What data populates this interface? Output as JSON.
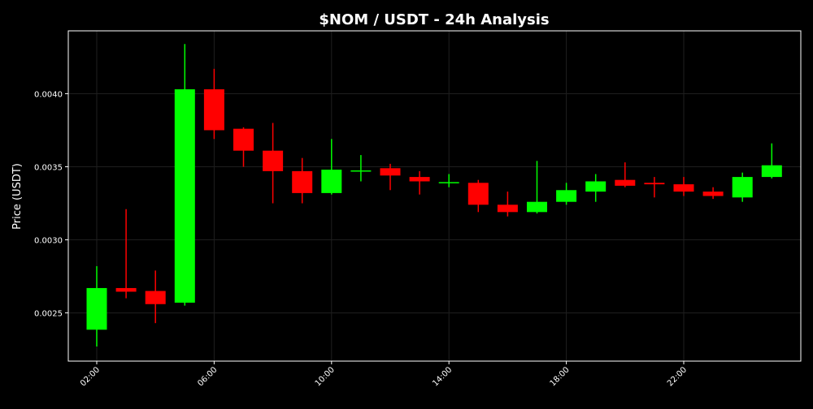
{
  "chart_data": {
    "type": "candlestick",
    "title": "$NOM / USDT - 24h Analysis",
    "xlabel": "",
    "ylabel": "Price (USDT)",
    "ylim": [
      0.00217,
      0.00443
    ],
    "grid": true,
    "x_ticks": [
      "02:00",
      "06:00",
      "10:00",
      "14:00",
      "18:00",
      "22:00"
    ],
    "y_ticks": [
      "0.0025",
      "0.0030",
      "0.0035",
      "0.0040"
    ],
    "colors": {
      "up": "#00ff00",
      "down": "#ff0000",
      "background": "#000000",
      "text": "#ffffff",
      "grid": "#1f1f1f"
    },
    "candles": [
      {
        "time": "02:00",
        "open": 0.002385,
        "high": 0.00282,
        "low": 0.00227,
        "close": 0.00267
      },
      {
        "time": "03:00",
        "open": 0.00267,
        "high": 0.00321,
        "low": 0.0026,
        "close": 0.002645
      },
      {
        "time": "04:00",
        "open": 0.00265,
        "high": 0.00279,
        "low": 0.00243,
        "close": 0.00256
      },
      {
        "time": "05:00",
        "open": 0.00257,
        "high": 0.00434,
        "low": 0.00255,
        "close": 0.00403
      },
      {
        "time": "06:00",
        "open": 0.00403,
        "high": 0.00417,
        "low": 0.00369,
        "close": 0.00375
      },
      {
        "time": "07:00",
        "open": 0.00376,
        "high": 0.00377,
        "low": 0.0035,
        "close": 0.00361
      },
      {
        "time": "08:00",
        "open": 0.00361,
        "high": 0.0038,
        "low": 0.00325,
        "close": 0.00347
      },
      {
        "time": "09:00",
        "open": 0.00347,
        "high": 0.00356,
        "low": 0.00325,
        "close": 0.00332
      },
      {
        "time": "10:00",
        "open": 0.00332,
        "high": 0.00369,
        "low": 0.00331,
        "close": 0.00348
      },
      {
        "time": "11:00",
        "open": 0.00347,
        "high": 0.00358,
        "low": 0.0034,
        "close": 0.003475
      },
      {
        "time": "12:00",
        "open": 0.00349,
        "high": 0.00352,
        "low": 0.00334,
        "close": 0.00344
      },
      {
        "time": "13:00",
        "open": 0.00343,
        "high": 0.00347,
        "low": 0.00331,
        "close": 0.0034
      },
      {
        "time": "14:00",
        "open": 0.00339,
        "high": 0.00345,
        "low": 0.00336,
        "close": 0.003395
      },
      {
        "time": "15:00",
        "open": 0.00339,
        "high": 0.00341,
        "low": 0.00319,
        "close": 0.00324
      },
      {
        "time": "16:00",
        "open": 0.00324,
        "high": 0.00333,
        "low": 0.00316,
        "close": 0.00319
      },
      {
        "time": "17:00",
        "open": 0.00319,
        "high": 0.00354,
        "low": 0.00318,
        "close": 0.00326
      },
      {
        "time": "18:00",
        "open": 0.00326,
        "high": 0.00339,
        "low": 0.00324,
        "close": 0.00334
      },
      {
        "time": "19:00",
        "open": 0.00333,
        "high": 0.00345,
        "low": 0.00326,
        "close": 0.0034
      },
      {
        "time": "20:00",
        "open": 0.00341,
        "high": 0.00353,
        "low": 0.00336,
        "close": 0.00337
      },
      {
        "time": "21:00",
        "open": 0.00339,
        "high": 0.00343,
        "low": 0.00329,
        "close": 0.00338
      },
      {
        "time": "22:00",
        "open": 0.00338,
        "high": 0.00343,
        "low": 0.0033,
        "close": 0.00333
      },
      {
        "time": "23:00",
        "open": 0.00333,
        "high": 0.00336,
        "low": 0.00328,
        "close": 0.0033
      },
      {
        "time": "00:00",
        "open": 0.00329,
        "high": 0.00346,
        "low": 0.00326,
        "close": 0.00343
      },
      {
        "time": "01:00",
        "open": 0.00343,
        "high": 0.00366,
        "low": 0.00342,
        "close": 0.00351
      }
    ]
  }
}
